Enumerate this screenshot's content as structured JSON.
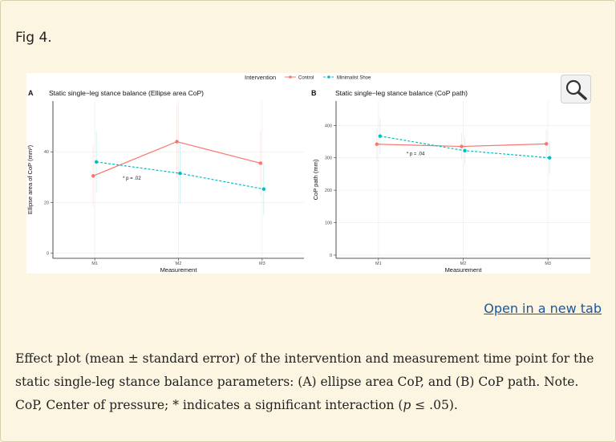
{
  "page": {
    "fig_label": "Fig 4.",
    "open_link": "Open in a new tab",
    "caption_part1": "Effect plot (mean ± standard error) of the intervention and measurement time point for the static single-leg stance balance parameters: (A) ellipse area CoP, and (B) CoP path. Note. CoP, Center of pressure; * indicates a significant interaction (",
    "caption_italic": "p",
    "caption_part2": " ≤ .05)."
  },
  "legend": {
    "title": "Intervention",
    "items": [
      "Control",
      "Minimalist Shoe"
    ]
  },
  "colors": {
    "control": "#f8766d",
    "minimalist": "#00bfc4"
  },
  "chart_data": [
    {
      "type": "line",
      "panel_letter": "A",
      "title": "Static single−leg stance balance (Ellipse area CoP)",
      "xlabel": "Measurement",
      "ylabel": "Ellipse area of CoP (mm²)",
      "categories": [
        "M1",
        "M2",
        "M3"
      ],
      "ylim": [
        -2,
        60
      ],
      "yticks": [
        0,
        20,
        40
      ],
      "ytick_labels": [
        "0",
        "20",
        "40"
      ],
      "series": [
        {
          "name": "Control",
          "values": [
            30.5,
            44,
            35.5
          ],
          "errors": [
            12,
            14,
            13
          ]
        },
        {
          "name": "Minimalist Shoe",
          "values": [
            36,
            31.5,
            25.3
          ],
          "errors": [
            12,
            12,
            10
          ]
        }
      ],
      "annotation": "* p = .02",
      "annotation_at": {
        "category": "M1",
        "value": 29
      }
    },
    {
      "type": "line",
      "panel_letter": "B",
      "title": "Static single−leg stance balance (CoP path)",
      "xlabel": "Measurement",
      "ylabel": "CoP path (mm)",
      "categories": [
        "M1",
        "M2",
        "M3"
      ],
      "ylim": [
        -10,
        475
      ],
      "yticks": [
        0,
        100,
        200,
        300,
        400
      ],
      "ytick_labels": [
        "0",
        "100",
        "200",
        "300",
        "400"
      ],
      "series": [
        {
          "name": "Control",
          "values": [
            342,
            335,
            343
          ],
          "errors": [
            50,
            40,
            45
          ]
        },
        {
          "name": "Minimalist Shoe",
          "values": [
            367,
            322,
            300
          ],
          "errors": [
            55,
            42,
            50
          ]
        }
      ],
      "annotation": "* p = .04",
      "annotation_at": {
        "category": "M1",
        "value": 308
      }
    }
  ]
}
